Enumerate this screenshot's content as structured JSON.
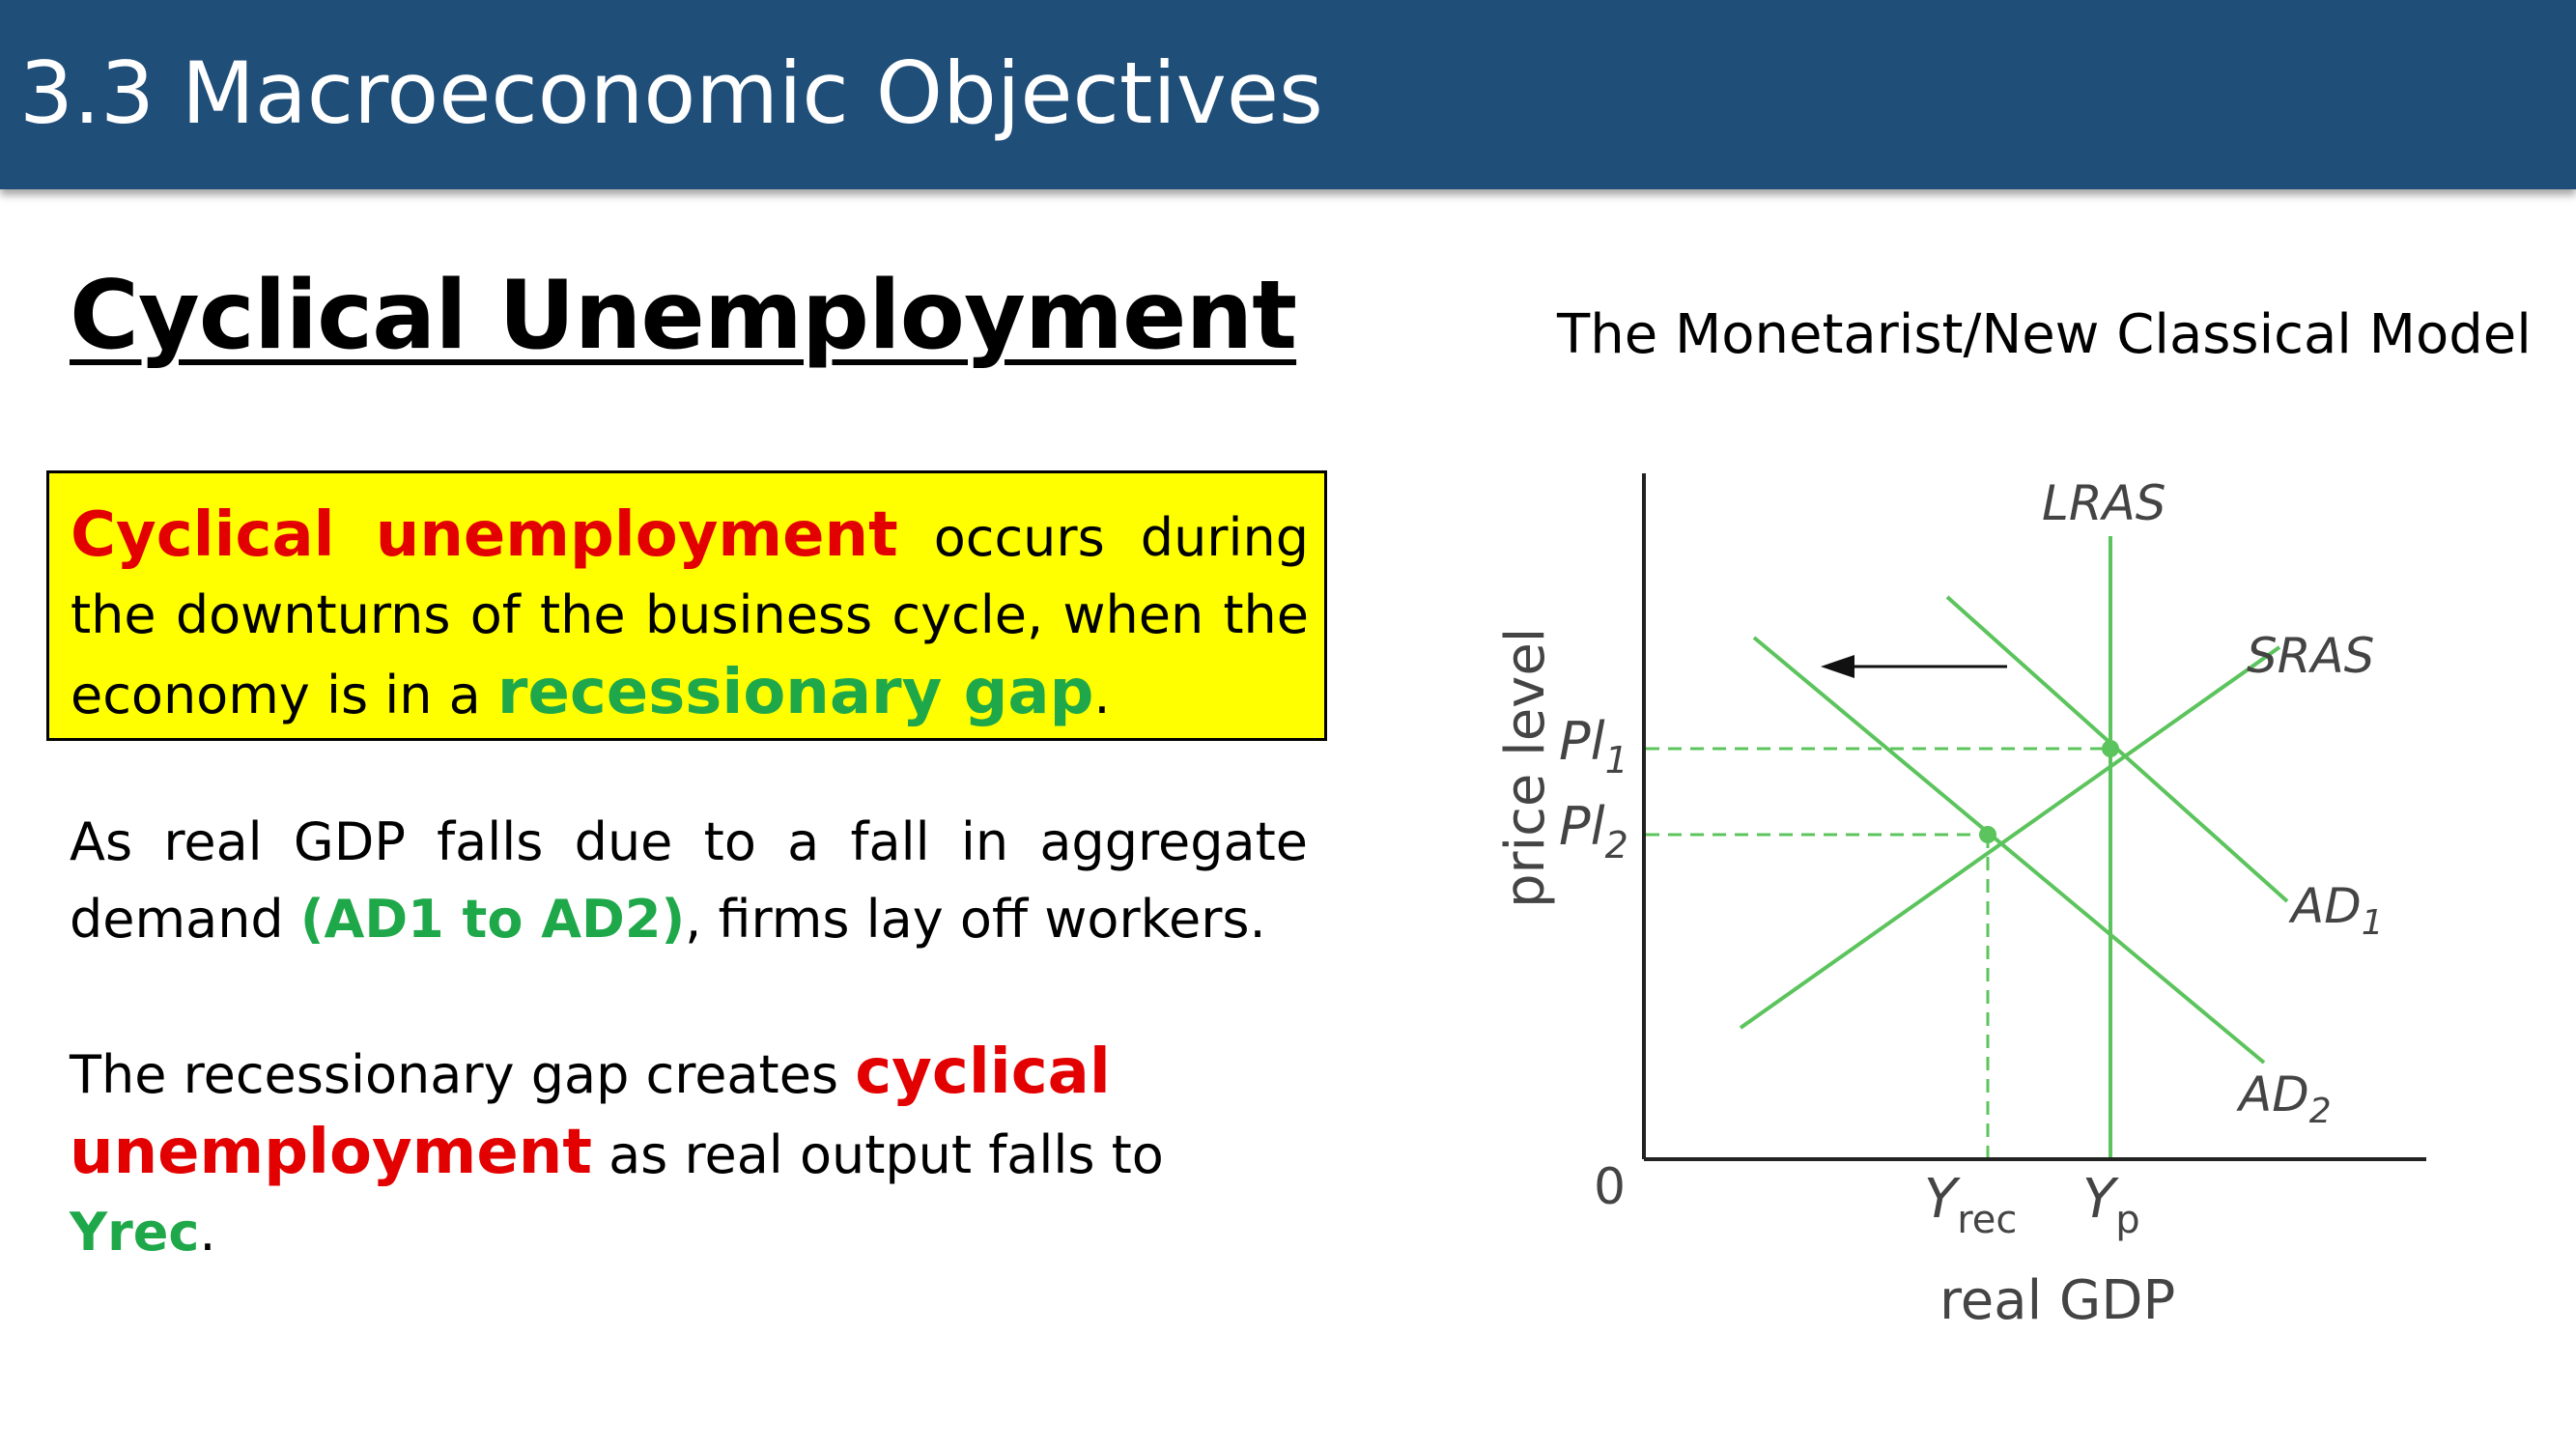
{
  "header": {
    "title": "3.3 Macroeconomic Objectives"
  },
  "section_title": "Cyclical Unemployment",
  "definition": {
    "term": "Cyclical unemployment",
    "text_1": " occurs during the downturns of the business cycle, when the economy is in a ",
    "highlight": "recessionary gap",
    "text_2": "."
  },
  "paragraph_1": {
    "text_1": "As real GDP falls due to a fall in aggregate demand ",
    "highlight": "(AD1 to AD2)",
    "text_2": ", firms lay off workers."
  },
  "paragraph_2": {
    "text_1": "The recessionary gap creates ",
    "highlight_1": "cyclical unemployment",
    "text_2": " as real output falls to ",
    "highlight_2": "Yrec",
    "text_3": "."
  },
  "diagram": {
    "title": "The Monetarist/New Classical Model",
    "y_axis_label": "price level",
    "x_axis_label": "real GDP",
    "origin_label": "0",
    "curves": {
      "lras": "LRAS",
      "sras": "SRAS",
      "ad1": {
        "base": "AD",
        "sub": "1"
      },
      "ad2": {
        "base": "AD",
        "sub": "2"
      }
    },
    "y_ticks": {
      "pl1": {
        "base": "Pl",
        "sub": "1"
      },
      "pl2": {
        "base": "Pl",
        "sub": "2"
      }
    },
    "x_ticks": {
      "yrec": {
        "base": "Y",
        "sub": "rec"
      },
      "yp": {
        "base": "Y",
        "sub": "p"
      }
    },
    "colors": {
      "curve": "#5cc45c",
      "axis": "#222222",
      "arrow": "#111111"
    },
    "shift_direction": "left"
  }
}
